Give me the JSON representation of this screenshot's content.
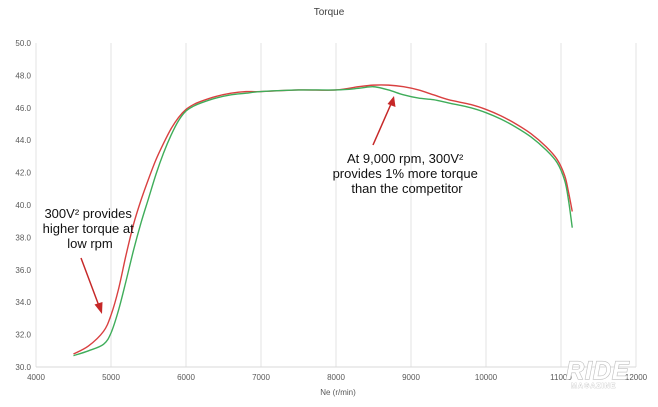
{
  "chart_data": {
    "type": "line",
    "title": "Torque",
    "xlabel": "Ne (r/min)",
    "ylabel": "",
    "xlim": [
      4000,
      12000
    ],
    "ylim": [
      30.0,
      50.0
    ],
    "x_ticks": [
      "4000",
      "5000",
      "6000",
      "7000",
      "8000",
      "9000",
      "10000",
      "11000",
      "12000"
    ],
    "y_ticks": [
      "30.0",
      "32.0",
      "34.0",
      "36.0",
      "38.0",
      "40.0",
      "42.0",
      "44.0",
      "46.0",
      "48.0",
      "50.0"
    ],
    "grid": "vertical",
    "legend": "none",
    "series": [
      {
        "color": "#d94040",
        "x": [
          4500,
          4700,
          4900,
          5000,
          5100,
          5200,
          5300,
          5400,
          5500,
          5600,
          5700,
          5800,
          5900,
          6000,
          6100,
          6200,
          6400,
          6600,
          6800,
          7000,
          7500,
          8000,
          8300,
          8500,
          8700,
          8900,
          9100,
          9300,
          9500,
          9800,
          10000,
          10200,
          10400,
          10600,
          10800,
          10950,
          11050,
          11100,
          11150
        ],
        "y": [
          30.8,
          31.3,
          32.2,
          33.2,
          34.8,
          36.9,
          38.8,
          40.3,
          41.6,
          42.8,
          43.8,
          44.7,
          45.4,
          45.9,
          46.2,
          46.4,
          46.7,
          46.9,
          47.0,
          47.0,
          47.1,
          47.1,
          47.3,
          47.4,
          47.4,
          47.3,
          47.1,
          46.8,
          46.5,
          46.2,
          45.9,
          45.5,
          45.0,
          44.4,
          43.6,
          42.8,
          41.8,
          40.8,
          39.6
        ]
      },
      {
        "color": "#3fad5a",
        "x": [
          4500,
          4700,
          4900,
          5000,
          5100,
          5200,
          5300,
          5400,
          5500,
          5600,
          5700,
          5800,
          5900,
          6000,
          6100,
          6200,
          6400,
          6600,
          6800,
          7000,
          7500,
          8000,
          8300,
          8500,
          8700,
          8900,
          9100,
          9300,
          9500,
          9800,
          10000,
          10200,
          10400,
          10600,
          10800,
          10950,
          11050,
          11100,
          11150
        ],
        "y": [
          30.7,
          31.0,
          31.4,
          32.1,
          33.5,
          35.3,
          37.2,
          38.9,
          40.4,
          41.9,
          43.2,
          44.3,
          45.2,
          45.8,
          46.1,
          46.3,
          46.6,
          46.8,
          46.9,
          47.0,
          47.1,
          47.1,
          47.2,
          47.3,
          47.1,
          46.8,
          46.6,
          46.5,
          46.3,
          46.0,
          45.7,
          45.3,
          44.8,
          44.2,
          43.4,
          42.6,
          41.5,
          40.3,
          38.6
        ]
      }
    ],
    "annotations": [
      {
        "lines": [
          "300V² provides",
          "higher torque at",
          "low rpm"
        ]
      },
      {
        "lines": [
          "At 9,000 rpm, 300V²",
          "provides 1% more torque",
          "than the competitor"
        ]
      }
    ]
  },
  "logo": {
    "main": "RIDE",
    "sub": "MAGAZINE"
  }
}
